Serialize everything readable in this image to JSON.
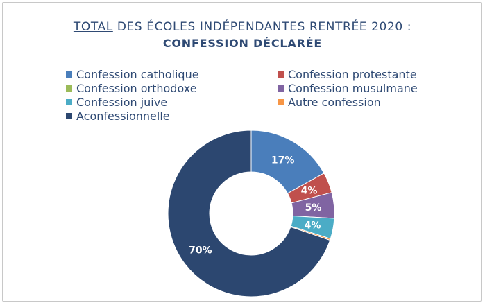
{
  "header": {
    "title_underlined": "TOTAL",
    "title_rest": " DES ÉCOLES INDÉPENDANTES RENTRÉE 2020 :",
    "subtitle": "CONFESSION DÉCLARÉE"
  },
  "chart_data": {
    "type": "pie",
    "donut": true,
    "title": "TOTAL DES ÉCOLES INDÉPENDANTES RENTRÉE 2020 : CONFESSION DÉCLARÉE",
    "legend_position": "top",
    "series": [
      {
        "name": "Confession catholique",
        "value": 17,
        "label": "17%",
        "color": "#4a7ebb"
      },
      {
        "name": "Confession protestante",
        "value": 4,
        "label": "4%",
        "color": "#c0504d"
      },
      {
        "name": "Confession orthodoxe",
        "value": 0,
        "label": "",
        "color": "#9bbb59"
      },
      {
        "name": "Confession musulmane",
        "value": 5,
        "label": "5%",
        "color": "#8064a2"
      },
      {
        "name": "Confession juive",
        "value": 4,
        "label": "4%",
        "color": "#4bacc6"
      },
      {
        "name": "Autre confession",
        "value": 0.3,
        "label": "",
        "color": "#f79646"
      },
      {
        "name": "Aconfessionnelle",
        "value": 70,
        "label": "70%",
        "color": "#2c4770"
      }
    ]
  }
}
